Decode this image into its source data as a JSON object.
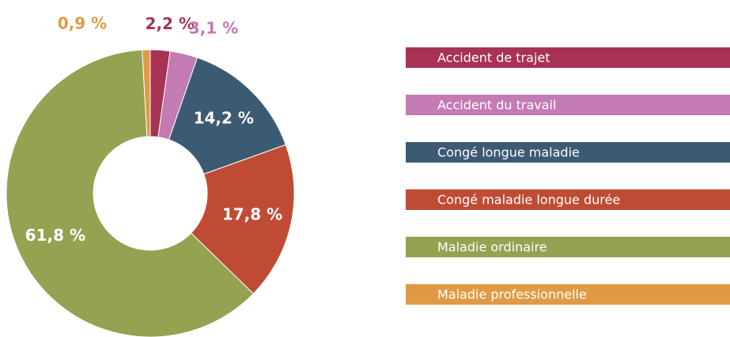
{
  "chart_data": {
    "type": "donut",
    "categories": [
      "Accident de trajet",
      "Accident du travail",
      "Congé longue maladie",
      "Congé maladie longue durée",
      "Maladie ordinaire",
      "Maladie professionnelle"
    ],
    "values": [
      2.2,
      3.1,
      14.2,
      17.8,
      61.8,
      0.9
    ],
    "value_labels": [
      "2,2 %",
      "3,1 %",
      "14,2 %",
      "17,8 %",
      "61,8 %",
      "0,9 %"
    ],
    "colors": [
      "#a83254",
      "#c47ab3",
      "#3d5a73",
      "#c04b35",
      "#93a351",
      "#e09a45"
    ],
    "legend": "right"
  }
}
